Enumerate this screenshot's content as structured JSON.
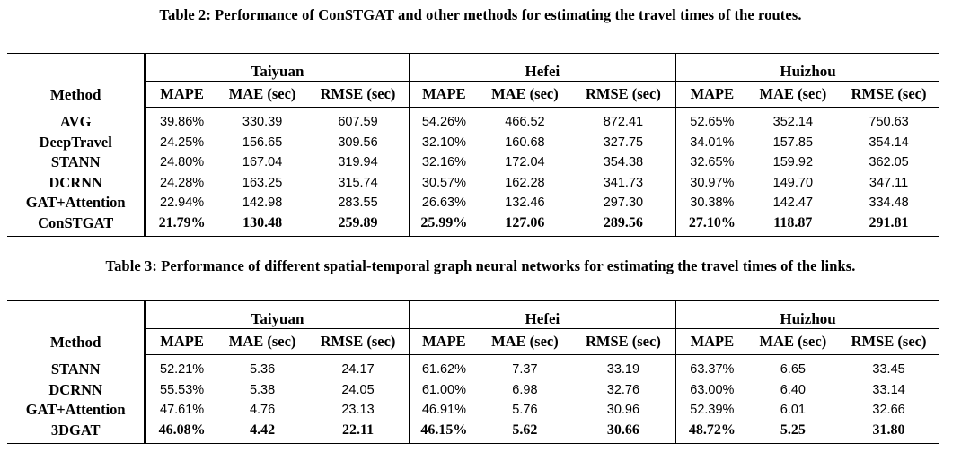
{
  "table2": {
    "caption": "Table 2: Performance of ConSTGAT and other methods for estimating the travel times of the routes.",
    "method_header": "Method",
    "cities": [
      "Taiyuan",
      "Hefei",
      "Huizhou"
    ],
    "metrics": [
      "MAPE",
      "MAE (sec)",
      "RMSE (sec)"
    ],
    "rows": [
      {
        "method": "AVG",
        "values": [
          "39.86%",
          "330.39",
          "607.59",
          "54.26%",
          "466.52",
          "872.41",
          "52.65%",
          "352.14",
          "750.63"
        ]
      },
      {
        "method": "DeepTravel",
        "values": [
          "24.25%",
          "156.65",
          "309.56",
          "32.10%",
          "160.68",
          "327.75",
          "34.01%",
          "157.85",
          "354.14"
        ]
      },
      {
        "method": "STANN",
        "values": [
          "24.80%",
          "167.04",
          "319.94",
          "32.16%",
          "172.04",
          "354.38",
          "32.65%",
          "159.92",
          "362.05"
        ]
      },
      {
        "method": "DCRNN",
        "values": [
          "24.28%",
          "163.25",
          "315.74",
          "30.57%",
          "162.28",
          "341.73",
          "30.97%",
          "149.70",
          "347.11"
        ]
      },
      {
        "method": "GAT+Attention",
        "values": [
          "22.94%",
          "142.98",
          "283.55",
          "26.63%",
          "132.46",
          "297.30",
          "30.38%",
          "142.47",
          "334.48"
        ]
      },
      {
        "method": "ConSTGAT",
        "values": [
          "21.79%",
          "130.48",
          "259.89",
          "25.99%",
          "127.06",
          "289.56",
          "27.10%",
          "118.87",
          "291.81"
        ]
      }
    ]
  },
  "table3": {
    "caption": "Table 3: Performance of different spatial-temporal graph neural networks for estimating the travel times of the links.",
    "method_header": "Method",
    "cities": [
      "Taiyuan",
      "Hefei",
      "Huizhou"
    ],
    "metrics": [
      "MAPE",
      "MAE (sec)",
      "RMSE (sec)"
    ],
    "rows": [
      {
        "method": "STANN",
        "values": [
          "52.21%",
          "5.36",
          "24.17",
          "61.62%",
          "7.37",
          "33.19",
          "63.37%",
          "6.65",
          "33.45"
        ]
      },
      {
        "method": "DCRNN",
        "values": [
          "55.53%",
          "5.38",
          "24.05",
          "61.00%",
          "6.98",
          "32.76",
          "63.00%",
          "6.40",
          "33.14"
        ]
      },
      {
        "method": "GAT+Attention",
        "values": [
          "47.61%",
          "4.76",
          "23.13",
          "46.91%",
          "5.76",
          "30.96",
          "52.39%",
          "6.01",
          "32.66"
        ]
      },
      {
        "method": "3DGAT",
        "values": [
          "46.08%",
          "4.42",
          "22.11",
          "46.15%",
          "5.62",
          "30.66",
          "48.72%",
          "5.25",
          "31.80"
        ]
      }
    ]
  }
}
